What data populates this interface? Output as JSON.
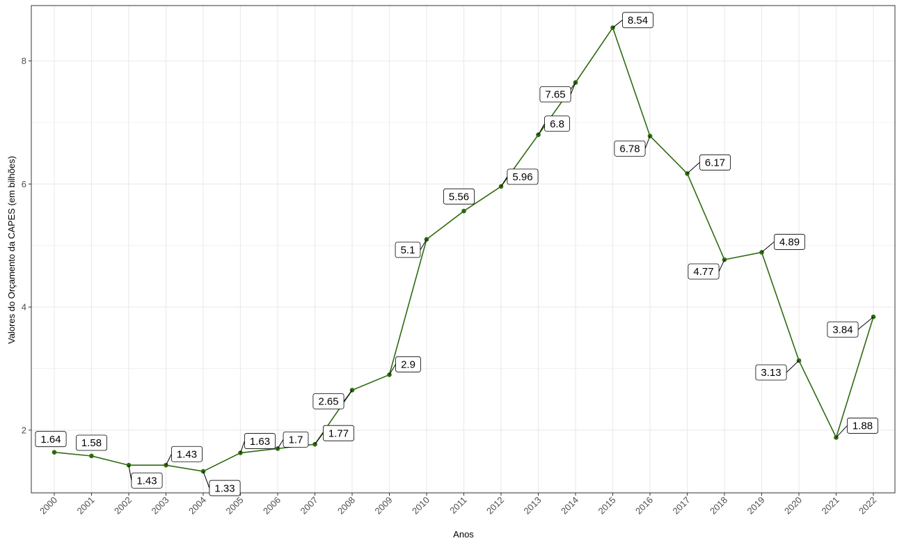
{
  "chart_data": {
    "type": "line",
    "x": [
      "2000",
      "2001",
      "2002",
      "2003",
      "2004",
      "2005",
      "2006",
      "2007",
      "2008",
      "2009",
      "2010",
      "2011",
      "2012",
      "2013",
      "2014",
      "2015",
      "2016",
      "2017",
      "2018",
      "2019",
      "2020",
      "2021",
      "2022"
    ],
    "values": [
      1.64,
      1.58,
      1.43,
      1.43,
      1.33,
      1.63,
      1.7,
      1.77,
      2.65,
      2.9,
      5.1,
      5.56,
      5.96,
      6.8,
      7.65,
      8.54,
      6.78,
      6.17,
      4.77,
      4.89,
      3.13,
      1.88,
      3.84
    ],
    "labels": [
      "1.64",
      "1.58",
      "1.43",
      "1.43",
      "1.33",
      "1.63",
      "1.7",
      "1.77",
      "2.65",
      "2.9",
      "5.1",
      "5.56",
      "5.96",
      "6.8",
      "7.65",
      "8.54",
      "6.78",
      "6.17",
      "4.77",
      "4.89",
      "3.13",
      "1.88",
      "3.84"
    ],
    "title": "",
    "xlabel": "Anos",
    "ylabel": "Valores do Orçamento da CAPES (em bilhões)",
    "ylim": [
      0.98,
      8.9
    ],
    "yticks": [
      2,
      4,
      6,
      8
    ],
    "ytick_labels": [
      "2",
      "4",
      "6",
      "8"
    ],
    "grid": true,
    "legend": "none",
    "line_color": "#2d6a0f",
    "point_color": "#2d6a0f",
    "panel_border_color": "#333333",
    "grid_color": "#ebebeb"
  }
}
